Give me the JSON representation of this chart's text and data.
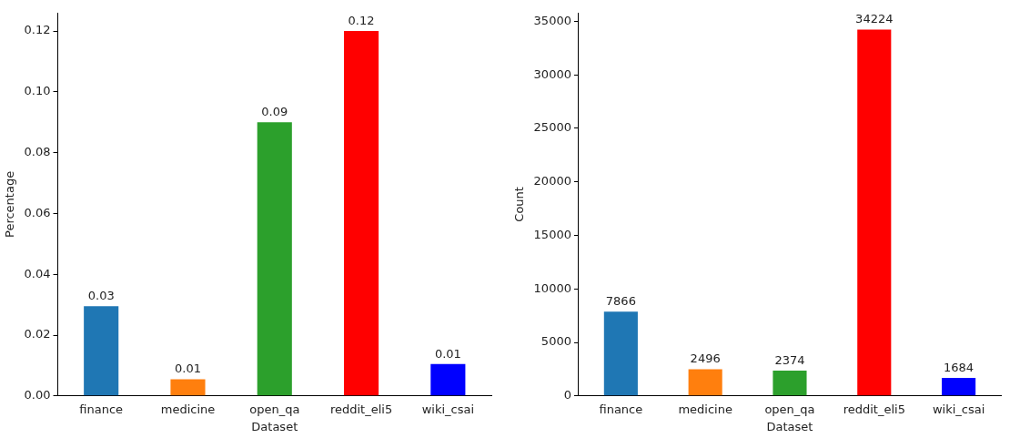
{
  "chart_data": [
    {
      "type": "bar",
      "xlabel": "Dataset",
      "ylabel": "Percentage",
      "categories": [
        "finance",
        "medicine",
        "open_qa",
        "reddit_eli5",
        "wiki_csai"
      ],
      "values": [
        0.0295,
        0.0055,
        0.09,
        0.12,
        0.0105
      ],
      "colors": [
        "#1f77b4",
        "#ff7f0e",
        "#2ca02c",
        "#ff0000",
        "#0000ff"
      ],
      "value_labels": [
        "0.03",
        "0.01",
        "0.09",
        "0.12",
        "0.01"
      ],
      "ylim": [
        0,
        0.126
      ],
      "yticks": [
        {
          "value": 0,
          "label": "0.00"
        },
        {
          "value": 0.02,
          "label": "0.02"
        },
        {
          "value": 0.04,
          "label": "0.04"
        },
        {
          "value": 0.06,
          "label": "0.06"
        },
        {
          "value": 0.08,
          "label": "0.08"
        },
        {
          "value": 0.1,
          "label": "0.10"
        },
        {
          "value": 0.12,
          "label": "0.12"
        }
      ],
      "grid": false,
      "legend": false
    },
    {
      "type": "bar",
      "xlabel": "Dataset",
      "ylabel": "Count",
      "categories": [
        "finance",
        "medicine",
        "open_qa",
        "reddit_eli5",
        "wiki_csai"
      ],
      "values": [
        7866,
        2496,
        2374,
        34224,
        1684
      ],
      "colors": [
        "#1f77b4",
        "#ff7f0e",
        "#2ca02c",
        "#ff0000",
        "#0000ff"
      ],
      "data_labels": true,
      "ylim": [
        0,
        35800
      ],
      "yticks": [
        0,
        5000,
        10000,
        15000,
        20000,
        25000,
        30000,
        35000
      ],
      "grid": false,
      "legend": false
    }
  ]
}
